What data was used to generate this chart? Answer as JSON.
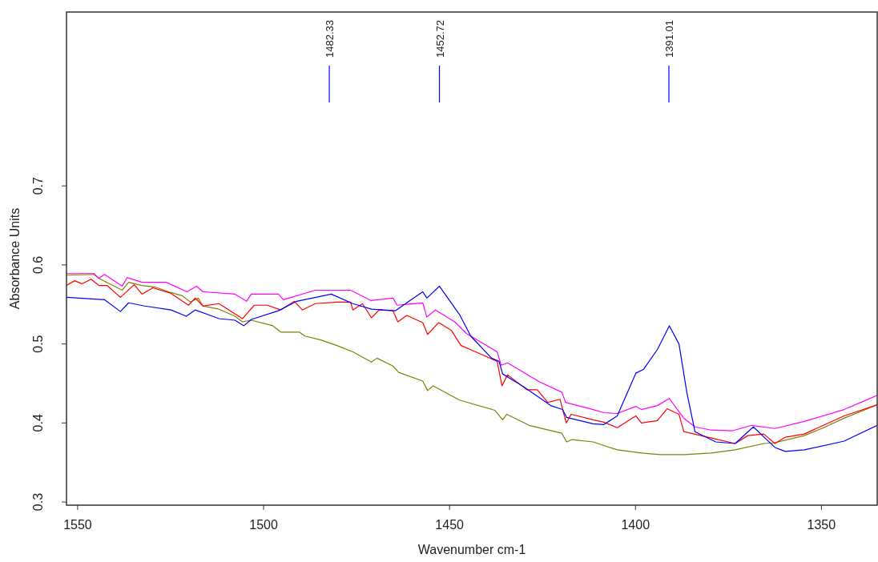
{
  "chart_data": {
    "type": "line",
    "xlabel": "Wavenumber cm-1",
    "ylabel": "Absorbance Units",
    "xlim": [
      1553,
      1335
    ],
    "ylim": [
      0.296,
      0.92
    ],
    "xticks": [
      1550,
      1500,
      1450,
      1400,
      1350
    ],
    "yticks": [
      0.3,
      0.4,
      0.5,
      0.6,
      0.7
    ],
    "grid": false,
    "line_style": "solid",
    "marker": "none",
    "ref_lines": [
      {
        "axis": "x",
        "value": 1482.33,
        "label": "1482.33",
        "color": "#0000ff"
      },
      {
        "axis": "x",
        "value": 1452.72,
        "label": "1452.72",
        "color": "#0000ff"
      },
      {
        "axis": "x",
        "value": 1391.01,
        "label": "1391.01",
        "color": "#0000ff"
      }
    ],
    "series": [
      {
        "color": "#808000",
        "x": [
          1553,
          1545.6,
          1544.3,
          1538,
          1536.3,
          1532.7,
          1529.2,
          1524.9,
          1521.9,
          1519.7,
          1517.6,
          1516.3,
          1512,
          1507.7,
          1505.7,
          1503.3,
          1497.5,
          1495.4,
          1490.4,
          1488.9,
          1484.6,
          1480.3,
          1476,
          1471,
          1469.5,
          1465.2,
          1463.7,
          1457.2,
          1455.9,
          1454.4,
          1447.3,
          1437.8,
          1435.7,
          1434.6,
          1428.6,
          1419.8,
          1418.5,
          1417.1,
          1411.4,
          1404.9,
          1398.4,
          1393.4,
          1387,
          1379.6,
          1373.2,
          1365.5,
          1362.5,
          1354.6,
          1349.4,
          1343.9,
          1335
        ],
        "values": [
          0.587,
          0.588,
          0.583,
          0.568,
          0.578,
          0.574,
          0.572,
          0.565,
          0.561,
          0.553,
          0.558,
          0.548,
          0.544,
          0.535,
          0.528,
          0.53,
          0.523,
          0.515,
          0.515,
          0.51,
          0.505,
          0.498,
          0.49,
          0.477,
          0.482,
          0.472,
          0.464,
          0.453,
          0.441,
          0.447,
          0.429,
          0.416,
          0.404,
          0.411,
          0.397,
          0.387,
          0.376,
          0.379,
          0.376,
          0.366,
          0.362,
          0.36,
          0.36,
          0.362,
          0.366,
          0.374,
          0.375,
          0.384,
          0.394,
          0.406,
          0.423
        ]
      },
      {
        "color": "#ff0000",
        "x": [
          1553,
          1550.8,
          1548.8,
          1546.4,
          1544.3,
          1542.1,
          1538.5,
          1534.8,
          1532.7,
          1529.8,
          1524.9,
          1520.2,
          1518.4,
          1516.3,
          1512,
          1505.7,
          1502.5,
          1499,
          1495.4,
          1491.7,
          1489.6,
          1486.1,
          1480.3,
          1476.6,
          1476,
          1473.4,
          1471,
          1468.9,
          1465.2,
          1463.9,
          1461.5,
          1457.2,
          1455.9,
          1452.9,
          1449.5,
          1446.9,
          1441.5,
          1437.2,
          1435.9,
          1434.4,
          1429.2,
          1426.4,
          1423.6,
          1420.3,
          1418.6,
          1417.3,
          1411.4,
          1408.5,
          1404.9,
          1399.9,
          1398.4,
          1394.1,
          1391.5,
          1388.3,
          1387,
          1379.6,
          1373.2,
          1369.8,
          1365.5,
          1362.5,
          1359.7,
          1354.6,
          1343.9,
          1335
        ],
        "values": [
          0.574,
          0.58,
          0.576,
          0.582,
          0.574,
          0.574,
          0.559,
          0.575,
          0.563,
          0.571,
          0.564,
          0.549,
          0.558,
          0.548,
          0.551,
          0.532,
          0.549,
          0.549,
          0.543,
          0.554,
          0.543,
          0.551,
          0.553,
          0.553,
          0.543,
          0.551,
          0.533,
          0.543,
          0.542,
          0.528,
          0.536,
          0.527,
          0.512,
          0.527,
          0.517,
          0.498,
          0.487,
          0.478,
          0.447,
          0.461,
          0.442,
          0.442,
          0.426,
          0.43,
          0.4,
          0.411,
          0.404,
          0.401,
          0.394,
          0.409,
          0.4,
          0.403,
          0.418,
          0.411,
          0.389,
          0.381,
          0.374,
          0.384,
          0.386,
          0.374,
          0.382,
          0.386,
          0.409,
          0.423
        ]
      },
      {
        "color": "#ff00ff",
        "x": [
          1553,
          1545.6,
          1544.3,
          1542.8,
          1538,
          1536.7,
          1532.7,
          1526.2,
          1520.6,
          1518,
          1516.3,
          1507.7,
          1504.6,
          1503.3,
          1496,
          1494.7,
          1486.1,
          1480.3,
          1476.6,
          1471.2,
          1465.2,
          1464.1,
          1457.2,
          1456.1,
          1453.8,
          1448.6,
          1445.4,
          1437.2,
          1436.1,
          1434.4,
          1425.8,
          1419.8,
          1418.8,
          1411.4,
          1408.5,
          1404.9,
          1399.9,
          1398.4,
          1394.1,
          1390.9,
          1387,
          1384,
          1379.6,
          1374,
          1368.8,
          1362.5,
          1354.6,
          1343.9,
          1335
        ],
        "values": [
          0.589,
          0.589,
          0.583,
          0.588,
          0.573,
          0.584,
          0.578,
          0.578,
          0.566,
          0.573,
          0.566,
          0.563,
          0.554,
          0.563,
          0.563,
          0.556,
          0.568,
          0.568,
          0.568,
          0.555,
          0.558,
          0.549,
          0.552,
          0.534,
          0.543,
          0.528,
          0.513,
          0.49,
          0.473,
          0.476,
          0.452,
          0.439,
          0.426,
          0.417,
          0.413,
          0.412,
          0.421,
          0.417,
          0.422,
          0.431,
          0.406,
          0.395,
          0.391,
          0.39,
          0.397,
          0.393,
          0.402,
          0.417,
          0.435
        ]
      },
      {
        "color": "#0000ff",
        "x": [
          1553,
          1542.8,
          1538.5,
          1536.3,
          1532,
          1524.9,
          1520.8,
          1518.4,
          1512,
          1507.7,
          1505.3,
          1503.3,
          1496,
          1491.1,
          1481.8,
          1476,
          1471,
          1464.6,
          1457.2,
          1456.1,
          1452.7,
          1447.3,
          1444.3,
          1438.7,
          1436.7,
          1435.7,
          1430.1,
          1422.8,
          1419.6,
          1418.5,
          1411.4,
          1408.5,
          1404.9,
          1399.9,
          1397.8,
          1394.1,
          1390.9,
          1388.3,
          1386.2,
          1384,
          1378.4,
          1373.2,
          1368.3,
          1362.5,
          1359.7,
          1354.6,
          1343.9,
          1335
        ],
        "values": [
          0.559,
          0.556,
          0.541,
          0.552,
          0.548,
          0.543,
          0.535,
          0.543,
          0.532,
          0.53,
          0.523,
          0.531,
          0.542,
          0.554,
          0.563,
          0.551,
          0.544,
          0.542,
          0.566,
          0.558,
          0.573,
          0.537,
          0.51,
          0.482,
          0.478,
          0.462,
          0.446,
          0.422,
          0.417,
          0.407,
          0.399,
          0.398,
          0.409,
          0.463,
          0.468,
          0.493,
          0.523,
          0.5,
          0.439,
          0.389,
          0.376,
          0.374,
          0.395,
          0.369,
          0.364,
          0.366,
          0.377,
          0.397
        ]
      }
    ]
  }
}
